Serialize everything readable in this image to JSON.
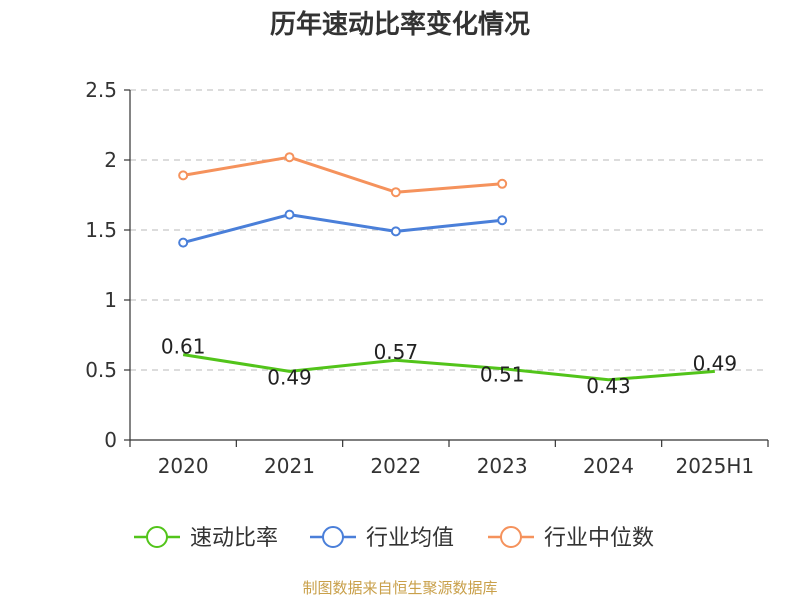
{
  "chart_data": {
    "type": "line",
    "title": "历年速动比率变化情况",
    "categories": [
      "2020",
      "2021",
      "2022",
      "2023",
      "2024",
      "2025H1"
    ],
    "ylim": [
      0,
      2.5
    ],
    "yticks": [
      "0",
      "0.5",
      "1",
      "1.5",
      "2",
      "2.5"
    ],
    "grid": true,
    "legend_position": "bottom",
    "series": [
      {
        "name": "速动比率",
        "color": "#52c41a",
        "values": [
          0.61,
          0.49,
          0.57,
          0.51,
          0.43,
          0.49
        ],
        "labels": [
          "0.61",
          "0.49",
          "0.57",
          "0.51",
          "0.43",
          "0.49"
        ]
      },
      {
        "name": "行业均值",
        "color": "#4a7fd9",
        "values": [
          1.41,
          1.61,
          1.49,
          1.57,
          null,
          null
        ]
      },
      {
        "name": "行业中位数",
        "color": "#f5925c",
        "values": [
          1.89,
          2.02,
          1.77,
          1.83,
          null,
          null
        ]
      }
    ]
  },
  "source_note": "制图数据来自恒生聚源数据库"
}
